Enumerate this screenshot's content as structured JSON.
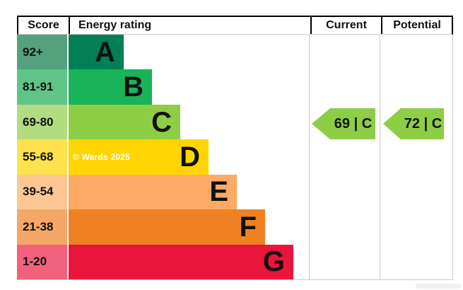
{
  "header": {
    "score": "Score",
    "energy_rating": "Energy rating",
    "current": "Current",
    "potential": "Potential"
  },
  "bands": [
    {
      "letter": "A",
      "score_range": "92+",
      "bar_color": "#008054",
      "score_bg_color": "#55a17e"
    },
    {
      "letter": "B",
      "score_range": "81-91",
      "bar_color": "#19b459",
      "score_bg_color": "#60c487"
    },
    {
      "letter": "C",
      "score_range": "69-80",
      "bar_color": "#8dce46",
      "score_bg_color": "#b3dc81"
    },
    {
      "letter": "D",
      "score_range": "55-68",
      "bar_color": "#ffd500",
      "score_bg_color": "#ffe24d",
      "watermark": "© Wards 2025"
    },
    {
      "letter": "E",
      "score_range": "39-54",
      "bar_color": "#fcaa65",
      "score_bg_color": "#fdc794"
    },
    {
      "letter": "F",
      "score_range": "21-38",
      "bar_color": "#ef8023",
      "score_bg_color": "#f4a767"
    },
    {
      "letter": "G",
      "score_range": "1-20",
      "bar_color": "#e9153b",
      "score_bg_color": "#f0617b"
    }
  ],
  "current": {
    "label": "69 | C",
    "score": 69,
    "band": "C",
    "color": "#8dce46"
  },
  "potential": {
    "label": "72 | C",
    "score": 72,
    "band": "C",
    "color": "#8dce46"
  },
  "chart_data": {
    "type": "bar",
    "title": "Energy rating",
    "categories": [
      "A",
      "B",
      "C",
      "D",
      "E",
      "F",
      "G"
    ],
    "score_ranges": [
      "92+",
      "81-91",
      "69-80",
      "55-68",
      "39-54",
      "21-38",
      "1-20"
    ],
    "band_colors": [
      "#008054",
      "#19b459",
      "#8dce46",
      "#ffd500",
      "#fcaa65",
      "#ef8023",
      "#e9153b"
    ],
    "current": {
      "score": 69,
      "band": "C"
    },
    "potential": {
      "score": 72,
      "band": "C"
    },
    "legend_position": "none",
    "grid": false,
    "annotations": [
      "© Wards 2025"
    ]
  }
}
